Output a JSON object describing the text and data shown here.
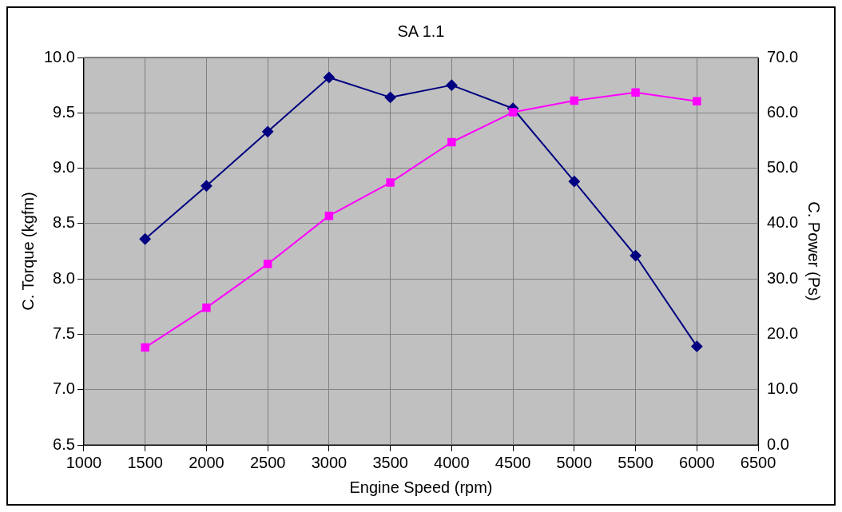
{
  "chart_data": {
    "type": "line",
    "title": "SA 1.1",
    "xlabel": "Engine Speed (rpm)",
    "ylabel": "C. Torque (kgfm)",
    "y2label": "C. Power (Ps)",
    "x": [
      1500,
      2000,
      2500,
      3000,
      3500,
      4000,
      4500,
      5000,
      5500,
      6000
    ],
    "series": [
      {
        "color": "#000080",
        "marker": "diamond",
        "values": [
          8.36,
          8.84,
          9.33,
          9.82,
          9.64,
          9.75,
          9.54,
          8.88,
          8.21,
          7.39
        ]
      },
      {
        "color": "#ff00ff",
        "marker": "square",
        "axis": "y2",
        "values": [
          17.6,
          24.8,
          32.7,
          41.4,
          47.4,
          54.7,
          60.1,
          62.2,
          63.7,
          62.1
        ]
      }
    ],
    "xlim": [
      1000,
      6500
    ],
    "xticks": [
      1000,
      1500,
      2000,
      2500,
      3000,
      3500,
      4000,
      4500,
      5000,
      5500,
      6000,
      6500
    ],
    "ylim": [
      6.5,
      10
    ],
    "yticks": [
      6.5,
      {
        "value": 7,
        "label": "7.0"
      },
      7.5,
      {
        "value": 8,
        "label": "8.0"
      },
      8.5,
      {
        "value": 9,
        "label": "9.0"
      },
      9.5,
      {
        "value": 10,
        "label": "10.0"
      }
    ],
    "y2lim": [
      0,
      70
    ],
    "y2ticks": [
      {
        "value": 0,
        "label": "0.0"
      },
      {
        "value": 10,
        "label": "10.0"
      },
      {
        "value": 20,
        "label": "20.0"
      },
      {
        "value": 30,
        "label": "30.0"
      },
      {
        "value": 40,
        "label": "40.0"
      },
      {
        "value": 50,
        "label": "50.0"
      },
      {
        "value": 60,
        "label": "60.0"
      },
      {
        "value": 70,
        "label": "70.0"
      }
    ],
    "grid": true,
    "legend": false
  }
}
